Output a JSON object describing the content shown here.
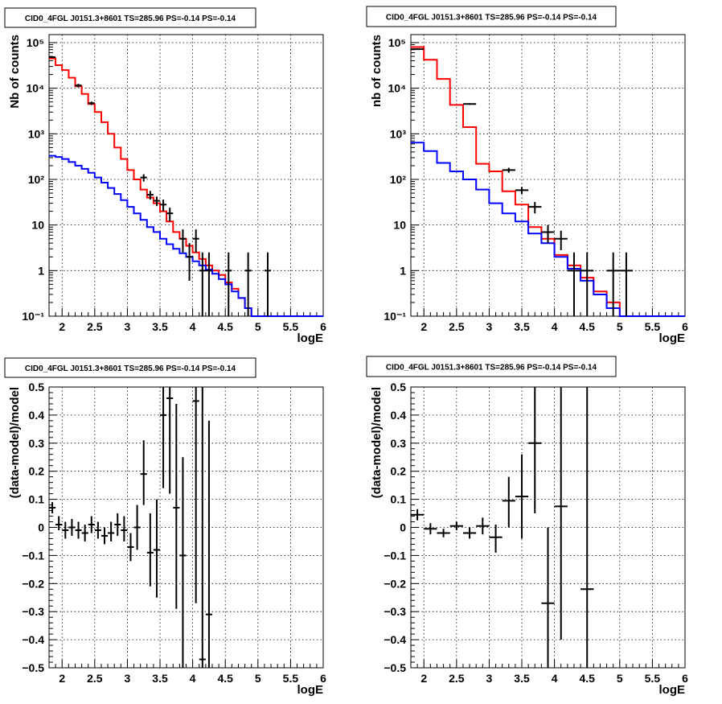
{
  "colors": {
    "data": "#000000",
    "total_model": "#ff0000",
    "component_model": "#0000ff",
    "grid": "#000000"
  },
  "chart_data": [
    {
      "id": "top-left",
      "type": "line",
      "title": "CID0_4FGL J0151.3+8601 TS=285.96 PS=-0.14 PS=-0.14",
      "xlabel": "logE",
      "ylabel": "Nb of counts",
      "xlim": [
        1.8,
        6.0
      ],
      "ylim": [
        0.1,
        150000
      ],
      "yscale": "log",
      "grid": true,
      "xticks": [
        2,
        2.5,
        3,
        3.5,
        4,
        4.5,
        5,
        5.5,
        6
      ],
      "xtick_labels": [
        "2",
        "2.5",
        "3",
        "3.5",
        "4",
        "4.5",
        "5",
        "5.5",
        "6"
      ],
      "yticks": [
        0.1,
        1,
        10,
        100,
        1000,
        10000,
        100000
      ],
      "ytick_labels": [
        "10⁻¹",
        "1",
        "10",
        "10²",
        "10³",
        "10⁴",
        "10⁵"
      ],
      "bin_edges": [
        1.8,
        1.9,
        2.0,
        2.1,
        2.2,
        2.3,
        2.4,
        2.5,
        2.6,
        2.7,
        2.8,
        2.9,
        3.0,
        3.1,
        3.2,
        3.3,
        3.4,
        3.5,
        3.6,
        3.7,
        3.8,
        3.9,
        4.0,
        4.1,
        4.2,
        4.3,
        4.4,
        4.5,
        4.6,
        4.7,
        4.8,
        4.9,
        5.0,
        5.1,
        5.2,
        5.3,
        5.4,
        5.5,
        5.6,
        5.7,
        5.8,
        5.9,
        6.0
      ],
      "series": [
        {
          "role": "total_model",
          "style": "step",
          "values": [
            45000,
            32000,
            25000,
            17000,
            11000,
            7500,
            4500,
            3000,
            1800,
            1000,
            500,
            280,
            160,
            100,
            60,
            40,
            30,
            20,
            12,
            7,
            5,
            3.5,
            2.5,
            1.8,
            1.3,
            1.0,
            0.8,
            0.55,
            0.4,
            0.25,
            0.15,
            0.1,
            0.1,
            0.1,
            0.1,
            0.1,
            0.1,
            0.1,
            0.1,
            0.1,
            0.1,
            0.1
          ]
        },
        {
          "role": "component_model",
          "style": "step",
          "values": [
            330,
            310,
            280,
            240,
            200,
            170,
            140,
            110,
            85,
            65,
            48,
            35,
            25,
            18,
            13,
            9,
            7,
            5,
            3.8,
            3,
            2.4,
            2.0,
            1.6,
            1.3,
            1.05,
            0.85,
            0.65,
            0.5,
            0.35,
            0.25,
            0.15,
            0.1,
            0.1,
            0.1,
            0.1,
            0.1,
            0.1,
            0.1,
            0.1,
            0.1,
            0.1,
            0.1
          ]
        },
        {
          "role": "data",
          "style": "errorbar",
          "points": [
            {
              "x": 1.85,
              "y": 48000,
              "lo": 46000,
              "hi": 50000
            },
            {
              "x": 2.25,
              "y": 11500,
              "lo": 10500,
              "hi": 12500
            },
            {
              "x": 2.45,
              "y": 4700,
              "lo": 4300,
              "hi": 5100
            },
            {
              "x": 3.25,
              "y": 110,
              "lo": 90,
              "hi": 130
            },
            {
              "x": 3.35,
              "y": 46,
              "lo": 36,
              "hi": 56
            },
            {
              "x": 3.45,
              "y": 34,
              "lo": 26,
              "hi": 42
            },
            {
              "x": 3.55,
              "y": 28,
              "lo": 20,
              "hi": 36
            },
            {
              "x": 3.65,
              "y": 18,
              "lo": 12,
              "hi": 24
            },
            {
              "x": 3.85,
              "y": 5,
              "lo": 2.5,
              "hi": 8
            },
            {
              "x": 3.95,
              "y": 2,
              "lo": 0.6,
              "hi": 4
            },
            {
              "x": 4.05,
              "y": 5,
              "lo": 2.5,
              "hi": 8
            },
            {
              "x": 4.15,
              "y": 1,
              "lo": 0.1,
              "hi": 2.5
            },
            {
              "x": 4.25,
              "y": 1,
              "lo": 0.1,
              "hi": 2.5
            },
            {
              "x": 4.55,
              "y": 1,
              "lo": 0.1,
              "hi": 2.5
            },
            {
              "x": 4.85,
              "y": 1,
              "lo": 0.1,
              "hi": 2.5
            },
            {
              "x": 5.15,
              "y": 1,
              "lo": 0.1,
              "hi": 2.5
            }
          ]
        }
      ]
    },
    {
      "id": "top-right",
      "type": "line",
      "title": "CID0_4FGL J0151.3+8601 TS=285.96 PS=-0.14 PS=-0.14",
      "xlabel": "logE",
      "ylabel": "nb of counts",
      "xlim": [
        1.8,
        6.0
      ],
      "ylim": [
        0.1,
        150000
      ],
      "yscale": "log",
      "grid": true,
      "xticks": [
        2,
        2.5,
        3,
        3.5,
        4,
        4.5,
        5,
        5.5,
        6
      ],
      "xtick_labels": [
        "2",
        "2.5",
        "3",
        "3.5",
        "4",
        "4.5",
        "5",
        "5.5",
        "6"
      ],
      "yticks": [
        0.1,
        1,
        10,
        100,
        1000,
        10000,
        100000
      ],
      "ytick_labels": [
        "10⁻¹",
        "1",
        "10",
        "10²",
        "10³",
        "10⁴",
        "10⁵"
      ],
      "bin_edges": [
        1.8,
        2.0,
        2.2,
        2.4,
        2.6,
        2.8,
        3.0,
        3.2,
        3.4,
        3.6,
        3.8,
        4.0,
        4.2,
        4.4,
        4.6,
        4.8,
        5.0,
        5.2,
        5.4,
        5.6,
        5.8,
        6.0
      ],
      "series": [
        {
          "role": "total_model",
          "style": "step",
          "values": [
            80000,
            42000,
            16000,
            4300,
            1400,
            220,
            150,
            55,
            28,
            9,
            5,
            2.2,
            1.3,
            0.7,
            0.35,
            0.2,
            0.1,
            0.1,
            0.1,
            0.1,
            0.1
          ]
        },
        {
          "role": "component_model",
          "style": "step",
          "values": [
            640,
            420,
            230,
            150,
            100,
            60,
            30,
            18,
            12,
            6.5,
            4,
            2.0,
            1.1,
            0.6,
            0.3,
            0.15,
            0.1,
            0.1,
            0.1,
            0.1,
            0.1
          ]
        },
        {
          "role": "data",
          "style": "errorbar",
          "points": [
            {
              "x": 1.9,
              "y": 72000,
              "lo": 70000,
              "hi": 74000
            },
            {
              "x": 2.7,
              "y": 4500,
              "lo": 4300,
              "hi": 4700
            },
            {
              "x": 3.3,
              "y": 160,
              "lo": 140,
              "hi": 180
            },
            {
              "x": 3.5,
              "y": 58,
              "lo": 48,
              "hi": 68
            },
            {
              "x": 3.7,
              "y": 25,
              "lo": 18,
              "hi": 32
            },
            {
              "x": 3.9,
              "y": 7,
              "lo": 4,
              "hi": 10
            },
            {
              "x": 4.1,
              "y": 5,
              "lo": 2.8,
              "hi": 7.5
            },
            {
              "x": 4.3,
              "y": 1,
              "lo": 0.1,
              "hi": 2.5
            },
            {
              "x": 4.5,
              "y": 1,
              "lo": 0.1,
              "hi": 2.5
            },
            {
              "x": 4.9,
              "y": 1,
              "lo": 0.1,
              "hi": 2.5
            },
            {
              "x": 5.1,
              "y": 1,
              "lo": 0.1,
              "hi": 2.5
            }
          ]
        }
      ]
    },
    {
      "id": "bottom-left",
      "type": "scatter",
      "title": "CID0_4FGL J0151.3+8601 TS=285.96 PS=-0.14 PS=-0.14",
      "xlabel": "logE",
      "ylabel": "(data-model)/model",
      "xlim": [
        1.8,
        6.0
      ],
      "ylim": [
        -0.5,
        0.5
      ],
      "grid": true,
      "xticks": [
        2,
        2.5,
        3,
        3.5,
        4,
        4.5,
        5,
        5.5,
        6
      ],
      "xtick_labels": [
        "2",
        "2.5",
        "3",
        "3.5",
        "4",
        "4.5",
        "5",
        "5.5",
        "6"
      ],
      "yticks": [
        -0.5,
        -0.4,
        -0.3,
        -0.2,
        -0.1,
        0,
        0.1,
        0.2,
        0.3,
        0.4,
        0.5
      ],
      "ytick_labels": [
        "−0.5",
        "−0.4",
        "−0.3",
        "−0.2",
        "−0.1",
        "0",
        "0.1",
        "0.2",
        "0.3",
        "0.4",
        "0.5"
      ],
      "xerr": 0.05,
      "points": [
        {
          "x": 1.85,
          "y": 0.07,
          "lo": 0.05,
          "hi": 0.09
        },
        {
          "x": 1.95,
          "y": 0.01,
          "lo": -0.01,
          "hi": 0.04
        },
        {
          "x": 2.05,
          "y": -0.01,
          "lo": -0.04,
          "hi": 0.02
        },
        {
          "x": 2.15,
          "y": 0.0,
          "lo": -0.03,
          "hi": 0.03
        },
        {
          "x": 2.25,
          "y": -0.01,
          "lo": -0.04,
          "hi": 0.02
        },
        {
          "x": 2.35,
          "y": -0.02,
          "lo": -0.05,
          "hi": 0.01
        },
        {
          "x": 2.45,
          "y": 0.01,
          "lo": -0.02,
          "hi": 0.04
        },
        {
          "x": 2.55,
          "y": -0.01,
          "lo": -0.04,
          "hi": 0.02
        },
        {
          "x": 2.65,
          "y": -0.03,
          "lo": -0.06,
          "hi": 0.0
        },
        {
          "x": 2.75,
          "y": -0.02,
          "lo": -0.05,
          "hi": 0.02
        },
        {
          "x": 2.85,
          "y": 0.01,
          "lo": -0.03,
          "hi": 0.05
        },
        {
          "x": 2.95,
          "y": -0.01,
          "lo": -0.05,
          "hi": 0.04
        },
        {
          "x": 3.05,
          "y": -0.07,
          "lo": -0.12,
          "hi": -0.02
        },
        {
          "x": 3.15,
          "y": 0.0,
          "lo": -0.08,
          "hi": 0.08
        },
        {
          "x": 3.25,
          "y": 0.19,
          "lo": 0.08,
          "hi": 0.31
        },
        {
          "x": 3.35,
          "y": -0.09,
          "lo": -0.21,
          "hi": 0.05
        },
        {
          "x": 3.45,
          "y": -0.08,
          "lo": -0.25,
          "hi": 0.1
        },
        {
          "x": 3.55,
          "y": 0.4,
          "lo": 0.14,
          "hi": 0.5
        },
        {
          "x": 3.65,
          "y": 0.46,
          "lo": 0.12,
          "hi": 0.5
        },
        {
          "x": 3.75,
          "y": 0.07,
          "lo": -0.29,
          "hi": 0.44
        },
        {
          "x": 3.85,
          "y": -0.1,
          "lo": -0.5,
          "hi": 0.25
        },
        {
          "x": 4.05,
          "y": 0.45,
          "lo": -0.27,
          "hi": 0.5
        },
        {
          "x": 4.15,
          "y": -0.47,
          "lo": -0.5,
          "hi": 0.5
        },
        {
          "x": 4.25,
          "y": -0.31,
          "lo": -0.5,
          "hi": 0.38
        }
      ]
    },
    {
      "id": "bottom-right",
      "type": "scatter",
      "title": "CID0_4FGL J0151.3+8601 TS=285.96 PS=-0.14 PS=-0.14",
      "xlabel": "logE",
      "ylabel": "(data-model)/model",
      "xlim": [
        1.8,
        6.0
      ],
      "ylim": [
        -0.5,
        0.5
      ],
      "grid": true,
      "xticks": [
        2,
        2.5,
        3,
        3.5,
        4,
        4.5,
        5,
        5.5,
        6
      ],
      "xtick_labels": [
        "2",
        "2.5",
        "3",
        "3.5",
        "4",
        "4.5",
        "5",
        "5.5",
        "6"
      ],
      "yticks": [
        -0.5,
        -0.4,
        -0.3,
        -0.2,
        -0.1,
        0,
        0.1,
        0.2,
        0.3,
        0.4,
        0.5
      ],
      "ytick_labels": [
        "−0.5",
        "−0.4",
        "−0.3",
        "−0.2",
        "−0.1",
        "0",
        "0.1",
        "0.2",
        "0.3",
        "0.4",
        "0.5"
      ],
      "xerr": 0.1,
      "points": [
        {
          "x": 1.9,
          "y": 0.045,
          "lo": 0.025,
          "hi": 0.065
        },
        {
          "x": 2.1,
          "y": -0.005,
          "lo": -0.025,
          "hi": 0.015
        },
        {
          "x": 2.3,
          "y": -0.02,
          "lo": -0.035,
          "hi": -0.005
        },
        {
          "x": 2.5,
          "y": 0.005,
          "lo": -0.01,
          "hi": 0.02
        },
        {
          "x": 2.7,
          "y": -0.02,
          "lo": -0.04,
          "hi": 0.0
        },
        {
          "x": 2.9,
          "y": 0.005,
          "lo": -0.025,
          "hi": 0.035
        },
        {
          "x": 3.1,
          "y": -0.035,
          "lo": -0.09,
          "hi": 0.01
        },
        {
          "x": 3.3,
          "y": 0.095,
          "lo": 0.0,
          "hi": 0.18
        },
        {
          "x": 3.5,
          "y": 0.11,
          "lo": -0.04,
          "hi": 0.26
        },
        {
          "x": 3.7,
          "y": 0.3,
          "lo": 0.05,
          "hi": 0.5
        },
        {
          "x": 3.9,
          "y": -0.27,
          "lo": -0.5,
          "hi": 0.0
        },
        {
          "x": 4.1,
          "y": 0.075,
          "lo": -0.4,
          "hi": 0.5
        },
        {
          "x": 4.5,
          "y": -0.22,
          "lo": -0.5,
          "hi": 0.5
        }
      ]
    }
  ]
}
